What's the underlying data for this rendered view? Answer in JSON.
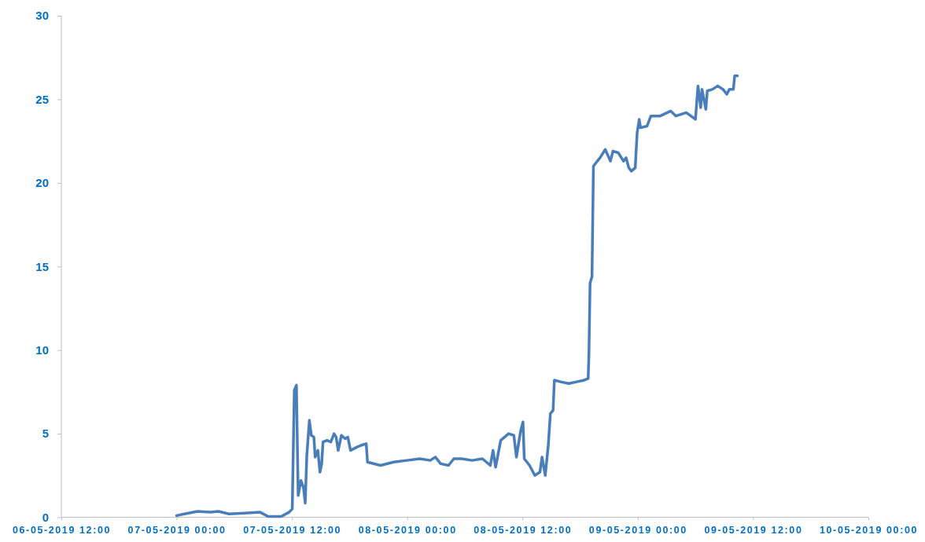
{
  "chart_data": {
    "type": "line",
    "color": "#4a7ebb",
    "line_style": "solid",
    "x": [
      "2019-05-07T00:00",
      "2019-05-07T00:49",
      "2019-05-07T02:11",
      "2019-05-07T03:32",
      "2019-05-07T04:21",
      "2019-05-07T05:27",
      "2019-05-07T07:04",
      "2019-05-07T08:42",
      "2019-05-07T09:31",
      "2019-05-07T10:53",
      "2019-05-07T11:42",
      "2019-05-07T12:02",
      "2019-05-07T12:15",
      "2019-05-07T12:28",
      "2019-05-07T12:39",
      "2019-05-07T12:56",
      "2019-05-07T13:12",
      "2019-05-07T13:23",
      "2019-05-07T13:33",
      "2019-05-07T13:49",
      "2019-05-07T14:01",
      "2019-05-07T14:17",
      "2019-05-07T14:25",
      "2019-05-07T14:42",
      "2019-05-07T14:55",
      "2019-05-07T15:06",
      "2019-05-07T15:14",
      "2019-05-07T15:39",
      "2019-05-07T16:03",
      "2019-05-07T16:23",
      "2019-05-07T16:36",
      "2019-05-07T16:49",
      "2019-05-07T17:09",
      "2019-05-07T17:33",
      "2019-05-07T17:49",
      "2019-05-07T18:06",
      "2019-05-07T18:47",
      "2019-05-07T19:11",
      "2019-05-07T19:44",
      "2019-05-07T19:52",
      "2019-05-07T21:13",
      "2019-05-07T22:35",
      "2019-05-07T23:57",
      "2019-05-08T01:18",
      "2019-05-08T02:24",
      "2019-05-08T02:56",
      "2019-05-08T03:29",
      "2019-05-08T04:18",
      "2019-05-08T04:51",
      "2019-05-08T05:40",
      "2019-05-08T06:45",
      "2019-05-08T07:50",
      "2019-05-08T08:39",
      "2019-05-08T08:56",
      "2019-05-08T09:12",
      "2019-05-08T09:44",
      "2019-05-08T10:33",
      "2019-05-08T11:06",
      "2019-05-08T11:22",
      "2019-05-08T11:47",
      "2019-05-08T12:03",
      "2019-05-08T12:11",
      "2019-05-08T12:44",
      "2019-05-08T13:17",
      "2019-05-08T13:49",
      "2019-05-08T14:02",
      "2019-05-08T14:22",
      "2019-05-08T14:41",
      "2019-05-08T14:54",
      "2019-05-08T15:11",
      "2019-05-08T15:19",
      "2019-05-08T15:59",
      "2019-05-08T16:49",
      "2019-05-08T17:37",
      "2019-05-08T18:26",
      "2019-05-08T18:50",
      "2019-05-08T18:55",
      "2019-05-08T19:02",
      "2019-05-08T19:14",
      "2019-05-08T19:23",
      "2019-05-08T19:39",
      "2019-05-08T20:04",
      "2019-05-08T20:37",
      "2019-05-08T21:09",
      "2019-05-08T21:25",
      "2019-05-08T21:58",
      "2019-05-08T22:31",
      "2019-05-08T22:47",
      "2019-05-08T23:04",
      "2019-05-08T23:20",
      "2019-05-08T23:44",
      "2019-05-08T23:56",
      "2019-05-09T00:09",
      "2019-05-09T00:17",
      "2019-05-09T00:58",
      "2019-05-09T01:22",
      "2019-05-09T02:20",
      "2019-05-09T03:25",
      "2019-05-09T03:58",
      "2019-05-09T05:03",
      "2019-05-09T06:00",
      "2019-05-09T06:16",
      "2019-05-09T06:33",
      "2019-05-09T06:41",
      "2019-05-09T07:05",
      "2019-05-09T07:14",
      "2019-05-09T07:47",
      "2019-05-09T08:19",
      "2019-05-09T08:52",
      "2019-05-09T09:16",
      "2019-05-09T09:32",
      "2019-05-09T09:57",
      "2019-05-09T10:05",
      "2019-05-09T10:22"
    ],
    "values": [
      0.1,
      0.2,
      0.35,
      0.3,
      0.35,
      0.2,
      0.25,
      0.3,
      0.05,
      0.05,
      0.3,
      0.5,
      7.6,
      7.9,
      1.3,
      2.2,
      1.8,
      0.85,
      3.7,
      5.8,
      4.9,
      4.8,
      3.6,
      4.0,
      2.7,
      3.2,
      4.5,
      4.6,
      4.5,
      5.0,
      4.8,
      4.0,
      4.9,
      4.7,
      4.8,
      4.0,
      4.2,
      4.3,
      4.4,
      3.3,
      3.1,
      3.3,
      3.4,
      3.5,
      3.4,
      3.6,
      3.2,
      3.1,
      3.5,
      3.5,
      3.4,
      3.5,
      3.1,
      4.0,
      3.0,
      4.6,
      5.0,
      4.9,
      3.6,
      5.1,
      5.7,
      3.5,
      3.1,
      2.5,
      2.7,
      3.6,
      2.5,
      4.3,
      6.2,
      6.4,
      8.2,
      8.1,
      8.0,
      8.1,
      8.2,
      8.3,
      9.8,
      14.0,
      14.4,
      21.0,
      21.2,
      21.5,
      22.0,
      21.3,
      21.9,
      21.8,
      21.3,
      21.5,
      20.9,
      20.7,
      20.9,
      23.0,
      23.8,
      23.3,
      23.4,
      24.0,
      24.0,
      24.3,
      24.0,
      24.2,
      23.8,
      25.8,
      24.5,
      25.6,
      24.4,
      25.5,
      25.6,
      25.8,
      25.6,
      25.3,
      25.6,
      25.6,
      26.4,
      26.4
    ],
    "xlim": [
      "2019-05-06T12:00",
      "2019-05-10T00:00"
    ],
    "xticks": [
      {
        "value": "2019-05-06T12:00",
        "label": "06-05-2019 12:00"
      },
      {
        "value": "2019-05-07T00:00",
        "label": "07-05-2019 00:00"
      },
      {
        "value": "2019-05-07T12:00",
        "label": "07-05-2019 12:00"
      },
      {
        "value": "2019-05-08T00:00",
        "label": "08-05-2019 00:00"
      },
      {
        "value": "2019-05-08T12:00",
        "label": "08-05-2019 12:00"
      },
      {
        "value": "2019-05-09T00:00",
        "label": "09-05-2019 00:00"
      },
      {
        "value": "2019-05-09T12:00",
        "label": "09-05-2019 12:00"
      },
      {
        "value": "2019-05-10T00:00",
        "label": "10-05-2019 00:00"
      }
    ],
    "ylim": [
      0,
      30
    ],
    "yticks": [
      0,
      5,
      10,
      15,
      20,
      25,
      30
    ]
  }
}
